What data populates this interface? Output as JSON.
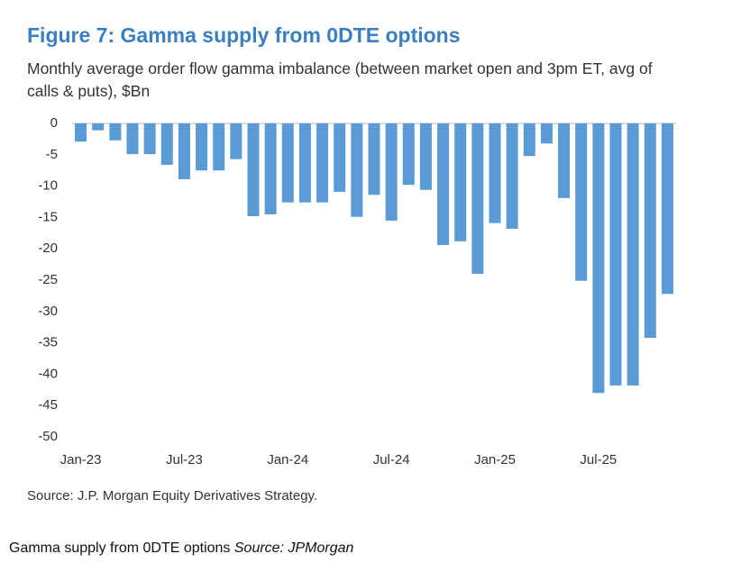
{
  "chart_data": {
    "type": "bar",
    "title": "Figure 7: Gamma supply from 0DTE options",
    "subtitle": "Monthly average order flow gamma imbalance (between market open and 3pm ET, avg of calls & puts), $Bn",
    "categories": [
      "Jan-23",
      null,
      null,
      null,
      null,
      null,
      "Jul-23",
      null,
      null,
      null,
      null,
      null,
      "Jan-24",
      null,
      null,
      null,
      null,
      null,
      "Jul-24",
      null,
      null,
      null,
      null,
      null,
      "Jan-25",
      null,
      null,
      null,
      null,
      null,
      "Jul-25",
      null,
      null,
      null,
      null
    ],
    "values": [
      -2.9,
      -1.1,
      -2.7,
      -4.9,
      -4.9,
      -6.6,
      -8.9,
      -7.5,
      -7.5,
      -5.7,
      -14.8,
      -14.5,
      -12.6,
      -12.6,
      -12.6,
      -10.9,
      -14.9,
      -11.4,
      -15.5,
      -9.8,
      -10.6,
      -19.4,
      -18.8,
      -24,
      -15.9,
      -16.8,
      -5.2,
      -3.2,
      -11.9,
      -25.1,
      -43,
      -41.8,
      -41.8,
      -34.2,
      -27.2
    ],
    "color": "#5b9bd5",
    "ylim": [
      -50,
      0
    ],
    "yticks": [
      0,
      -5,
      -10,
      -15,
      -20,
      -25,
      -30,
      -35,
      -40,
      -45,
      -50
    ],
    "source": "Source: J.P. Morgan Equity Derivatives Strategy.",
    "caption": {
      "text": "Gamma supply from 0DTE options",
      "source": "Source: JPMorgan"
    }
  }
}
